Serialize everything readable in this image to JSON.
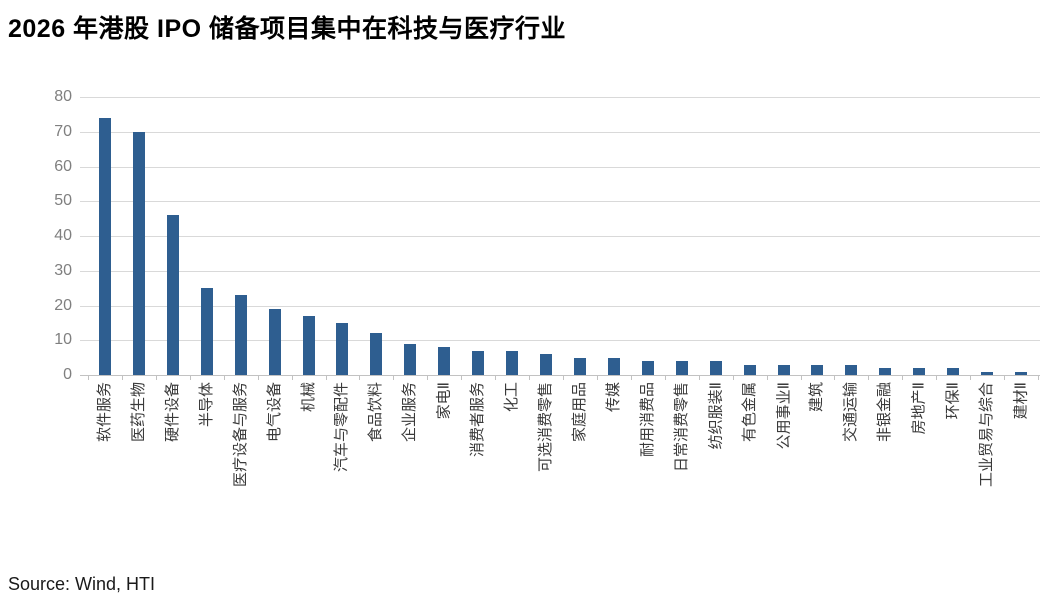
{
  "title": "2026 年港股 IPO 储备项目集中在科技与医疗行业",
  "source": "Source: Wind, HTI",
  "chart_data": {
    "type": "bar",
    "title": "2026 年港股 IPO 储备项目集中在科技与医疗行业",
    "categories": [
      "软件服务",
      "医药生物",
      "硬件设备",
      "半导体",
      "医疗设备与服务",
      "电气设备",
      "机械",
      "汽车与零配件",
      "食品饮料",
      "企业服务",
      "家电Ⅱ",
      "消费者服务",
      "化工",
      "可选消费零售",
      "家庭用品",
      "传媒",
      "耐用消费品",
      "日常消费零售",
      "纺织服装Ⅱ",
      "有色金属",
      "公用事业Ⅱ",
      "建筑",
      "交通运输",
      "非银金融",
      "房地产Ⅱ",
      "环保Ⅱ",
      "工业贸易与综合",
      "建材Ⅱ"
    ],
    "values": [
      74,
      70,
      46,
      25,
      23,
      19,
      17,
      15,
      12,
      9,
      8,
      7,
      7,
      6,
      5,
      5,
      4,
      4,
      4,
      3,
      3,
      3,
      3,
      2,
      2,
      2,
      1,
      1
    ],
    "xlabel": "",
    "ylabel": "",
    "ylim": [
      0,
      80
    ],
    "yticks": [
      0,
      10,
      20,
      30,
      40,
      50,
      60,
      70,
      80
    ],
    "grid": true,
    "legend": "none",
    "bar_color": "#2E5E90",
    "gridline_color": "#D9D9D9",
    "axis_line_color": "#C2C2C2",
    "tick_label_color": "#7F7F7F",
    "category_label_color": "#3A3A3A"
  }
}
